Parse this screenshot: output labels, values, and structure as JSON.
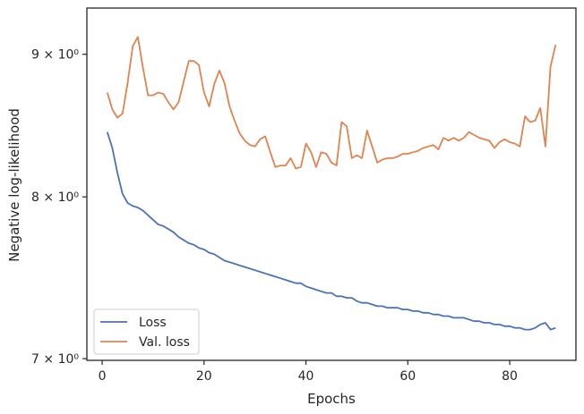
{
  "chart_data": {
    "type": "line",
    "xlabel": "Epochs",
    "ylabel": "Negative log-likelihood",
    "yscale": "log",
    "xlim": [
      -3,
      93
    ],
    "ylim": [
      6.99,
      9.35
    ],
    "x_ticks": [
      {
        "value": 0,
        "label": "0"
      },
      {
        "value": 20,
        "label": "20"
      },
      {
        "value": 40,
        "label": "40"
      },
      {
        "value": 60,
        "label": "60"
      },
      {
        "value": 80,
        "label": "80"
      }
    ],
    "y_ticks": [
      {
        "value": 7,
        "label": "7 × 10⁰"
      },
      {
        "value": 8,
        "label": "8 × 10⁰"
      },
      {
        "value": 9,
        "label": "9 × 10⁰"
      }
    ],
    "legend_position": "lower-left",
    "grid": false,
    "series": [
      {
        "name": "Loss",
        "color": "#4c72b0",
        "values": [
          8.44,
          8.33,
          8.16,
          8.02,
          7.96,
          7.94,
          7.93,
          7.91,
          7.88,
          7.85,
          7.82,
          7.81,
          7.79,
          7.77,
          7.74,
          7.72,
          7.7,
          7.69,
          7.67,
          7.66,
          7.64,
          7.63,
          7.61,
          7.59,
          7.58,
          7.57,
          7.56,
          7.55,
          7.54,
          7.53,
          7.52,
          7.51,
          7.5,
          7.49,
          7.48,
          7.47,
          7.46,
          7.45,
          7.45,
          7.43,
          7.42,
          7.41,
          7.4,
          7.39,
          7.39,
          7.37,
          7.37,
          7.36,
          7.36,
          7.34,
          7.33,
          7.33,
          7.32,
          7.31,
          7.31,
          7.3,
          7.3,
          7.3,
          7.29,
          7.29,
          7.28,
          7.28,
          7.27,
          7.27,
          7.26,
          7.26,
          7.25,
          7.25,
          7.24,
          7.24,
          7.24,
          7.23,
          7.22,
          7.22,
          7.21,
          7.21,
          7.2,
          7.2,
          7.19,
          7.19,
          7.18,
          7.18,
          7.17,
          7.17,
          7.18,
          7.2,
          7.21,
          7.17,
          7.18
        ]
      },
      {
        "name": "Val. loss",
        "color": "#dd8452",
        "values": [
          8.72,
          8.6,
          8.54,
          8.57,
          8.79,
          9.06,
          9.13,
          8.9,
          8.7,
          8.7,
          8.72,
          8.71,
          8.65,
          8.6,
          8.65,
          8.8,
          8.95,
          8.95,
          8.92,
          8.72,
          8.62,
          8.78,
          8.88,
          8.79,
          8.62,
          8.52,
          8.43,
          8.38,
          8.35,
          8.34,
          8.39,
          8.41,
          8.3,
          8.2,
          8.21,
          8.21,
          8.26,
          8.19,
          8.2,
          8.36,
          8.3,
          8.2,
          8.3,
          8.29,
          8.23,
          8.21,
          8.51,
          8.48,
          8.26,
          8.28,
          8.26,
          8.45,
          8.34,
          8.23,
          8.25,
          8.26,
          8.26,
          8.27,
          8.29,
          8.29,
          8.3,
          8.31,
          8.33,
          8.34,
          8.35,
          8.32,
          8.4,
          8.38,
          8.4,
          8.38,
          8.4,
          8.44,
          8.42,
          8.4,
          8.39,
          8.38,
          8.33,
          8.37,
          8.39,
          8.37,
          8.36,
          8.34,
          8.55,
          8.51,
          8.52,
          8.61,
          8.34,
          8.91,
          9.07
        ]
      }
    ]
  }
}
